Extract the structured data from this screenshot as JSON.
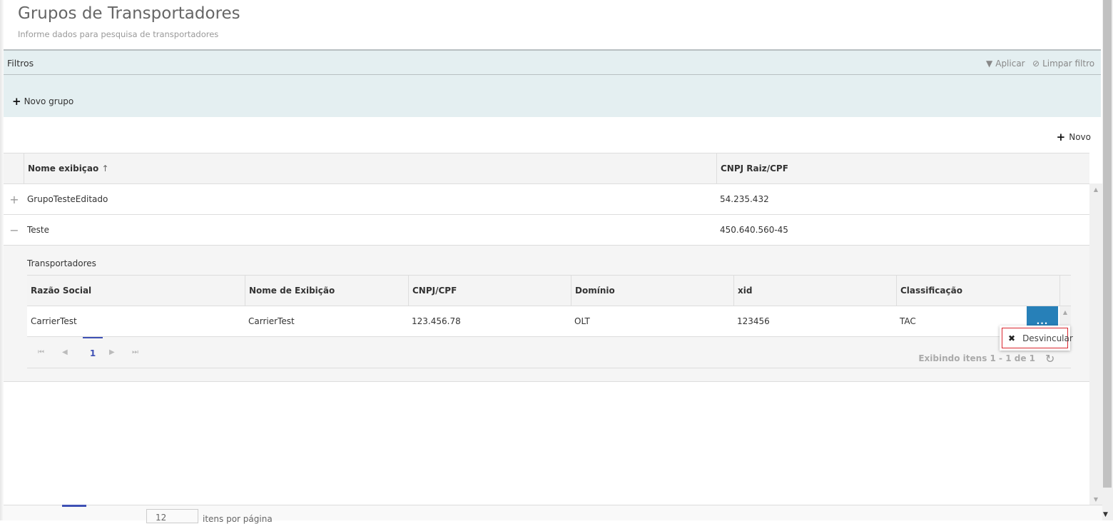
{
  "header": {
    "title": "Grupos de Transportadores",
    "subtitle": "Informe dados para pesquisa de transportadores"
  },
  "filters": {
    "label": "Filtros",
    "apply": "Aplicar",
    "clear": "Limpar filtro",
    "new_group": "Novo grupo"
  },
  "toolbar": {
    "new": "Novo"
  },
  "grid": {
    "columns": [
      "Nome exibiçao",
      "CNPJ Raiz/CPF"
    ],
    "sort_indicator": "↑",
    "rows": [
      {
        "expand": "+",
        "name": "GrupoTesteEditado",
        "cnpj": "54.235.432"
      },
      {
        "expand": "−",
        "name": "Teste",
        "cnpj": "450.640.560-45"
      }
    ]
  },
  "detail": {
    "title": "Transportadores",
    "columns": [
      "Razão Social",
      "Nome de Exibição",
      "CNPJ/CPF",
      "Domínio",
      "xid",
      "Classificação"
    ],
    "rows": [
      [
        "CarrierTest",
        "CarrierTest",
        "123.456.78",
        "OLT",
        "123456",
        "TAC"
      ]
    ],
    "actions_label": "...",
    "menu": {
      "unlink": "Desvincular"
    },
    "pager": {
      "first": "⏮",
      "prev": "◀",
      "page": "1",
      "next": "▶",
      "last": "⏭",
      "summary": "Exibindo itens 1 - 1 de 1",
      "refresh": "↻"
    }
  },
  "footer": {
    "page_size": "12",
    "per_page": "itens por página"
  }
}
